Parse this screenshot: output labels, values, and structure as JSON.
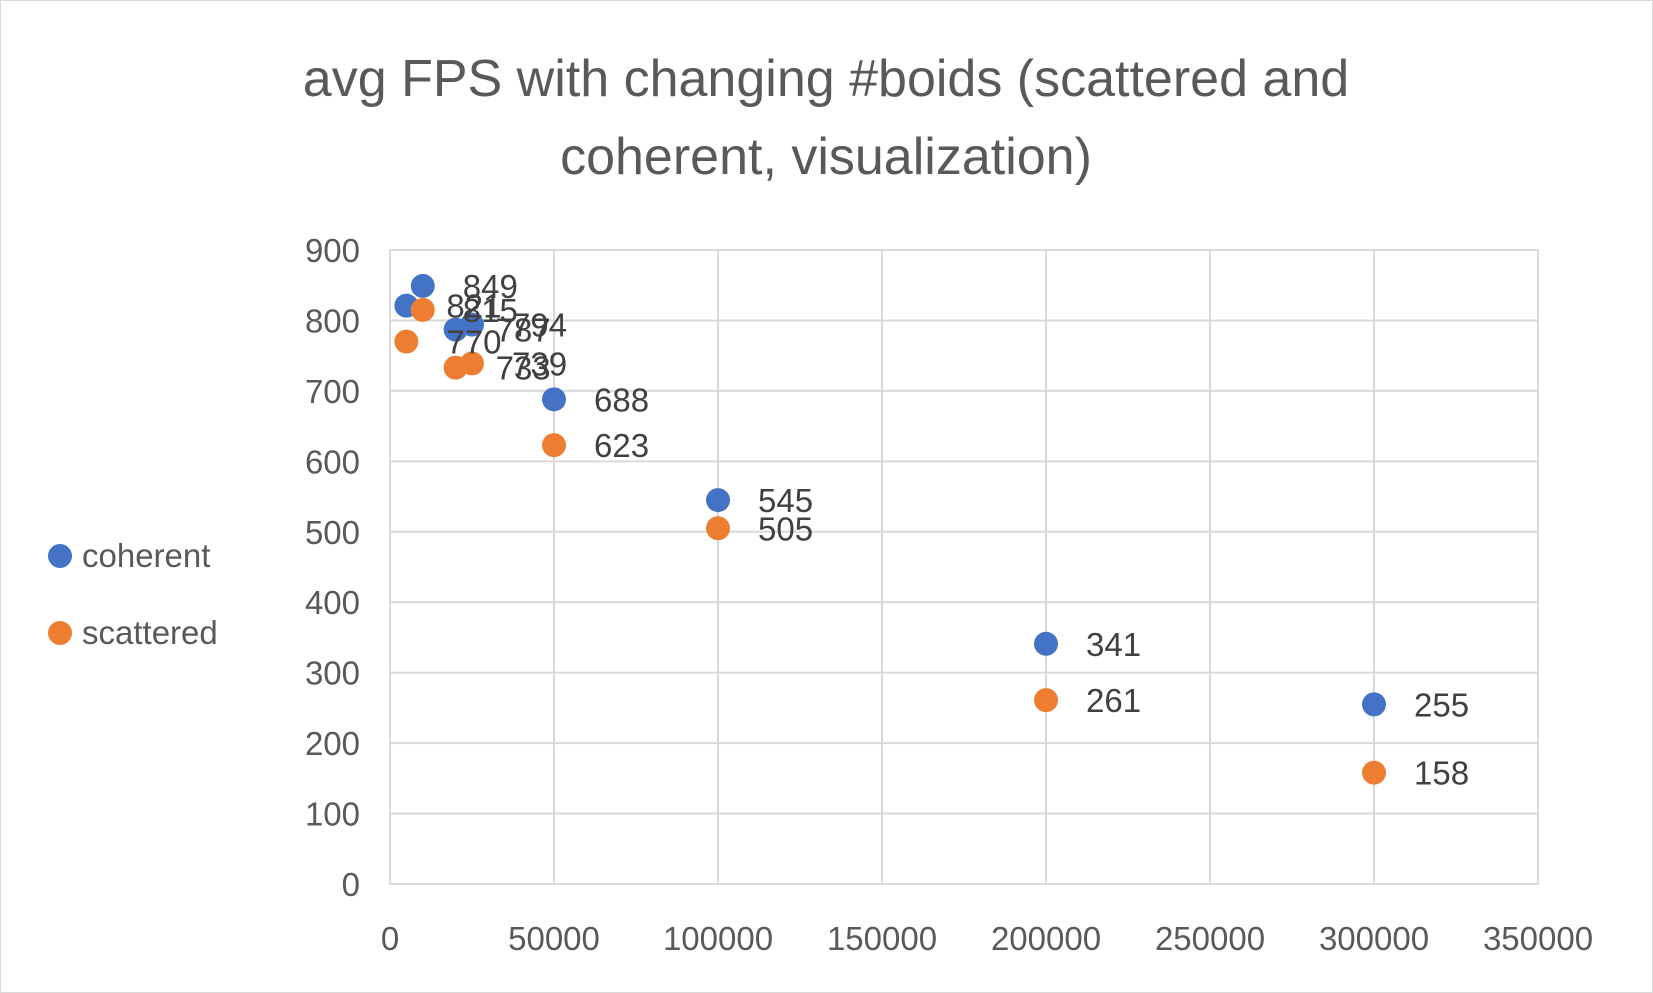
{
  "chart_data": {
    "type": "scatter",
    "title": [
      "avg FPS with changing #boids (scattered and",
      "coherent, visualization)"
    ],
    "xlim": [
      0,
      350000
    ],
    "ylim": [
      0,
      900
    ],
    "x_ticks": [
      0,
      50000,
      100000,
      150000,
      200000,
      250000,
      300000,
      350000
    ],
    "y_ticks": [
      0,
      100,
      200,
      300,
      400,
      500,
      600,
      700,
      800,
      900
    ],
    "x_tick_labels": [
      "0",
      "50000",
      "100000",
      "150000",
      "200000",
      "250000",
      "300000",
      "350000"
    ],
    "y_tick_labels": [
      "0",
      "100",
      "200",
      "300",
      "400",
      "500",
      "600",
      "700",
      "800",
      "900"
    ],
    "grid": true,
    "legend_position": "left",
    "series": [
      {
        "name": "coherent",
        "color": "#4472c4",
        "points": [
          {
            "x": 5000,
            "y": 821,
            "label": "821"
          },
          {
            "x": 10000,
            "y": 849,
            "label": "849"
          },
          {
            "x": 20000,
            "y": 787,
            "label": "787"
          },
          {
            "x": 25000,
            "y": 794,
            "label": "794"
          },
          {
            "x": 50000,
            "y": 688,
            "label": "688"
          },
          {
            "x": 100000,
            "y": 545,
            "label": "545"
          },
          {
            "x": 200000,
            "y": 341,
            "label": "341"
          },
          {
            "x": 300000,
            "y": 255,
            "label": "255"
          }
        ]
      },
      {
        "name": "scattered",
        "color": "#ed7d31",
        "points": [
          {
            "x": 5000,
            "y": 770,
            "label": "770"
          },
          {
            "x": 10000,
            "y": 815,
            "label": "815"
          },
          {
            "x": 20000,
            "y": 733,
            "label": "733"
          },
          {
            "x": 25000,
            "y": 739,
            "label": "739"
          },
          {
            "x": 50000,
            "y": 623,
            "label": "623"
          },
          {
            "x": 100000,
            "y": 505,
            "label": "505"
          },
          {
            "x": 200000,
            "y": 261,
            "label": "261"
          },
          {
            "x": 300000,
            "y": 158,
            "label": "158"
          }
        ]
      }
    ]
  }
}
